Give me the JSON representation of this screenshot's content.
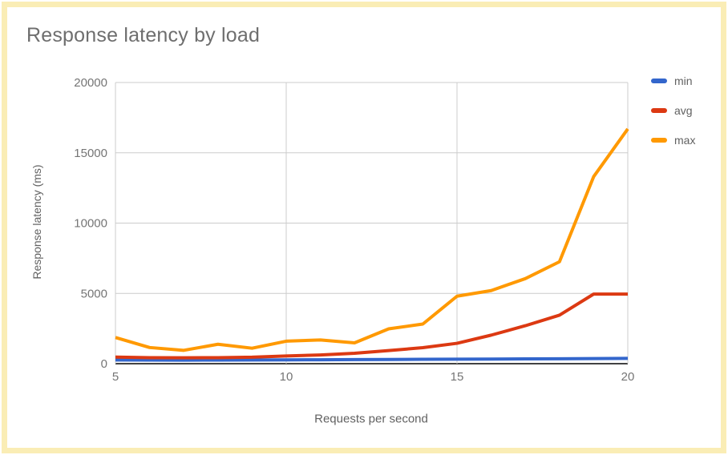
{
  "page": {
    "background": "#FFFFFF",
    "border_color": "#FAEDB5"
  },
  "chart_data": {
    "type": "line",
    "title": "Response latency by load",
    "xlabel": "Requests per second",
    "ylabel": "Response latency (ms)",
    "x": [
      5,
      6,
      7,
      8,
      9,
      10,
      11,
      12,
      13,
      14,
      15,
      16,
      17,
      18,
      19,
      20
    ],
    "xlim": [
      5,
      20
    ],
    "ylim": [
      0,
      20000
    ],
    "x_ticks": [
      5,
      10,
      15,
      20
    ],
    "y_ticks": [
      0,
      5000,
      10000,
      15000,
      20000
    ],
    "grid": true,
    "legend_position": "right",
    "series": [
      {
        "name": "min",
        "color": "#3366CC",
        "values": [
          260,
          255,
          250,
          255,
          260,
          270,
          280,
          290,
          300,
          310,
          320,
          330,
          340,
          350,
          365,
          380
        ]
      },
      {
        "name": "avg",
        "color": "#DC3912",
        "values": [
          470,
          430,
          420,
          430,
          460,
          550,
          620,
          740,
          930,
          1140,
          1450,
          2030,
          2700,
          3450,
          4950,
          4950
        ]
      },
      {
        "name": "max",
        "color": "#FF9900",
        "values": [
          1860,
          1150,
          950,
          1380,
          1100,
          1600,
          1690,
          1480,
          2480,
          2820,
          4800,
          5200,
          6050,
          7250,
          13300,
          16700
        ]
      }
    ]
  }
}
